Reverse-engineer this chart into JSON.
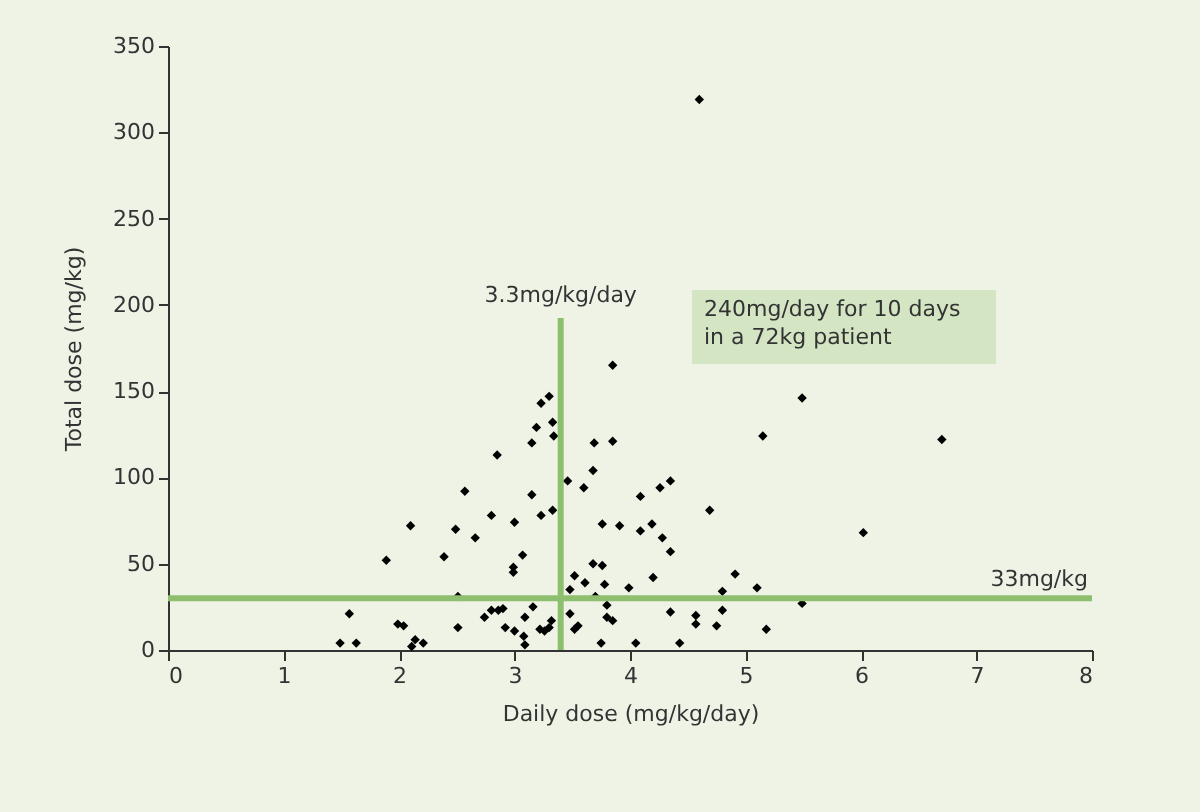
{
  "chart_data": {
    "type": "scatter",
    "xlabel": "Daily dose (mg/kg/day)",
    "ylabel": "Total dose (mg/kg)",
    "x": [
      1.49,
      1.57,
      1.63,
      1.89,
      1.99,
      2.04,
      2.1,
      2.11,
      2.14,
      2.21,
      2.39,
      2.49,
      2.51,
      2.51,
      2.57,
      2.66,
      2.74,
      2.8,
      2.8,
      2.85,
      2.86,
      2.9,
      2.92,
      2.99,
      2.99,
      3.0,
      3.0,
      3.07,
      3.08,
      3.09,
      3.09,
      3.15,
      3.15,
      3.16,
      3.19,
      3.22,
      3.23,
      3.23,
      3.26,
      3.3,
      3.3,
      3.33,
      3.33,
      3.34,
      3.32,
      3.46,
      3.48,
      3.48,
      3.52,
      3.52,
      3.55,
      3.6,
      3.61,
      3.68,
      3.69,
      3.68,
      3.7,
      3.76,
      3.76,
      3.75,
      3.78,
      3.8,
      3.8,
      3.85,
      3.85,
      3.85,
      3.91,
      3.99,
      4.05,
      4.09,
      4.09,
      4.19,
      4.2,
      4.26,
      4.28,
      4.35,
      4.35,
      4.35,
      4.43,
      4.57,
      4.57,
      4.6,
      4.69,
      4.75,
      4.8,
      4.8,
      4.91,
      5.1,
      5.15,
      5.18,
      5.49,
      5.49,
      6.02,
      6.7
    ],
    "series": [
      {
        "color": "#000000",
        "values": [
          4,
          21,
          4,
          52,
          15,
          14,
          72,
          2,
          6,
          4,
          54,
          70,
          13,
          31,
          92,
          65,
          19,
          78,
          23,
          113,
          23,
          24,
          13,
          48,
          45,
          74,
          11,
          55,
          8,
          3,
          19,
          90,
          120,
          25,
          129,
          12,
          143,
          78,
          11,
          147,
          13,
          132,
          81,
          124,
          17,
          98,
          35,
          21,
          43,
          12,
          14,
          94,
          39,
          104,
          120,
          50,
          31,
          73,
          49,
          4,
          38,
          26,
          19,
          165,
          121,
          17,
          72,
          36,
          4,
          89,
          69,
          73,
          42,
          94,
          65,
          98,
          57,
          22,
          4,
          20,
          15,
          319,
          81,
          14,
          34,
          23,
          44,
          36,
          124,
          12,
          146,
          27,
          68,
          122
        ]
      }
    ],
    "marker": "diamond",
    "xlim": [
      0,
      8
    ],
    "xticks": [
      0,
      1,
      2,
      3,
      4,
      5,
      6,
      7,
      8
    ],
    "ylim": [
      0,
      350
    ],
    "yticks": [
      0,
      50,
      100,
      150,
      200,
      250,
      300,
      350
    ],
    "grid": false,
    "ref_lines": [
      {
        "axis": "x",
        "value": 3.4,
        "label": "3.3mg/kg/day",
        "color": "#8dbf6f"
      },
      {
        "axis": "y",
        "value": 30,
        "label": "33mg/kg",
        "color": "#8dbf6f"
      }
    ],
    "annotations": [
      "240mg/day for 10 days\nin a 72kg patient"
    ]
  }
}
